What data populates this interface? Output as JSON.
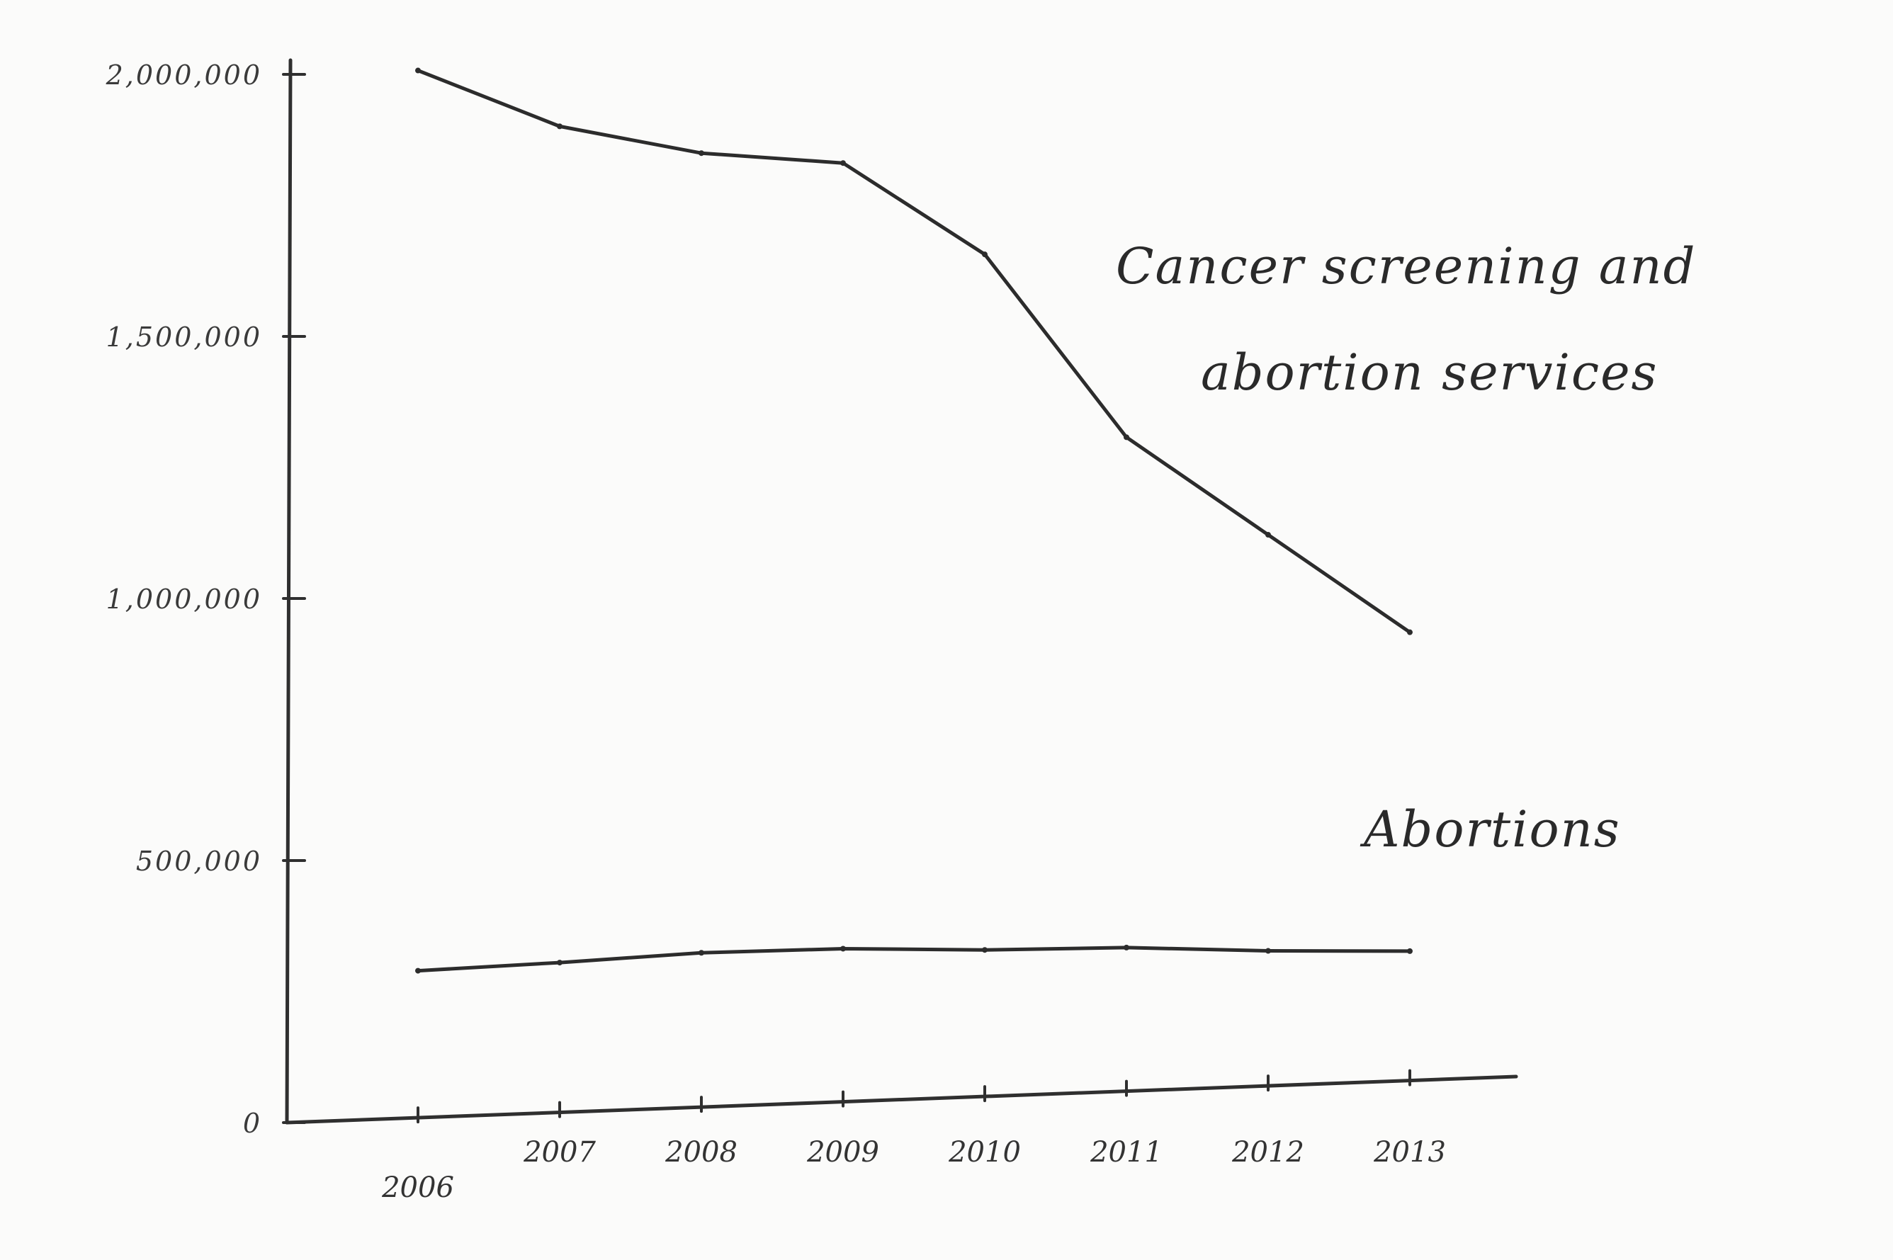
{
  "chart_data": {
    "type": "line",
    "title": "",
    "xlabel": "",
    "ylabel": "",
    "x": [
      "2006",
      "2007",
      "2008",
      "2009",
      "2010",
      "2011",
      "2012",
      "2013"
    ],
    "ylim": [
      0,
      2000000
    ],
    "y_ticks": [
      {
        "value": 0,
        "label": "0"
      },
      {
        "value": 500000,
        "label": "500,000"
      },
      {
        "value": 1000000,
        "label": "1,000,000"
      },
      {
        "value": 1500000,
        "label": "1,500,000"
      },
      {
        "value": 2000000,
        "label": "2,000,000"
      }
    ],
    "grid": false,
    "legend": "none",
    "series": [
      {
        "name": "Cancer screening and abortion services",
        "label_lines": [
          "Cancer screening and",
          "abortion services"
        ],
        "values": [
          2007371,
          1900850,
          1849691,
          1830811,
          1656559,
          1307630,
          1121580,
          935573
        ]
      },
      {
        "name": "Abortions",
        "label_lines": [
          "Abortions"
        ],
        "values": [
          289750,
          305310,
          324008,
          331796,
          329445,
          333964,
          327653,
          327166
        ]
      }
    ],
    "colors": {
      "line": "#2c2c2c",
      "axis": "#2f2f2f",
      "background": "#fbfbfa"
    }
  }
}
